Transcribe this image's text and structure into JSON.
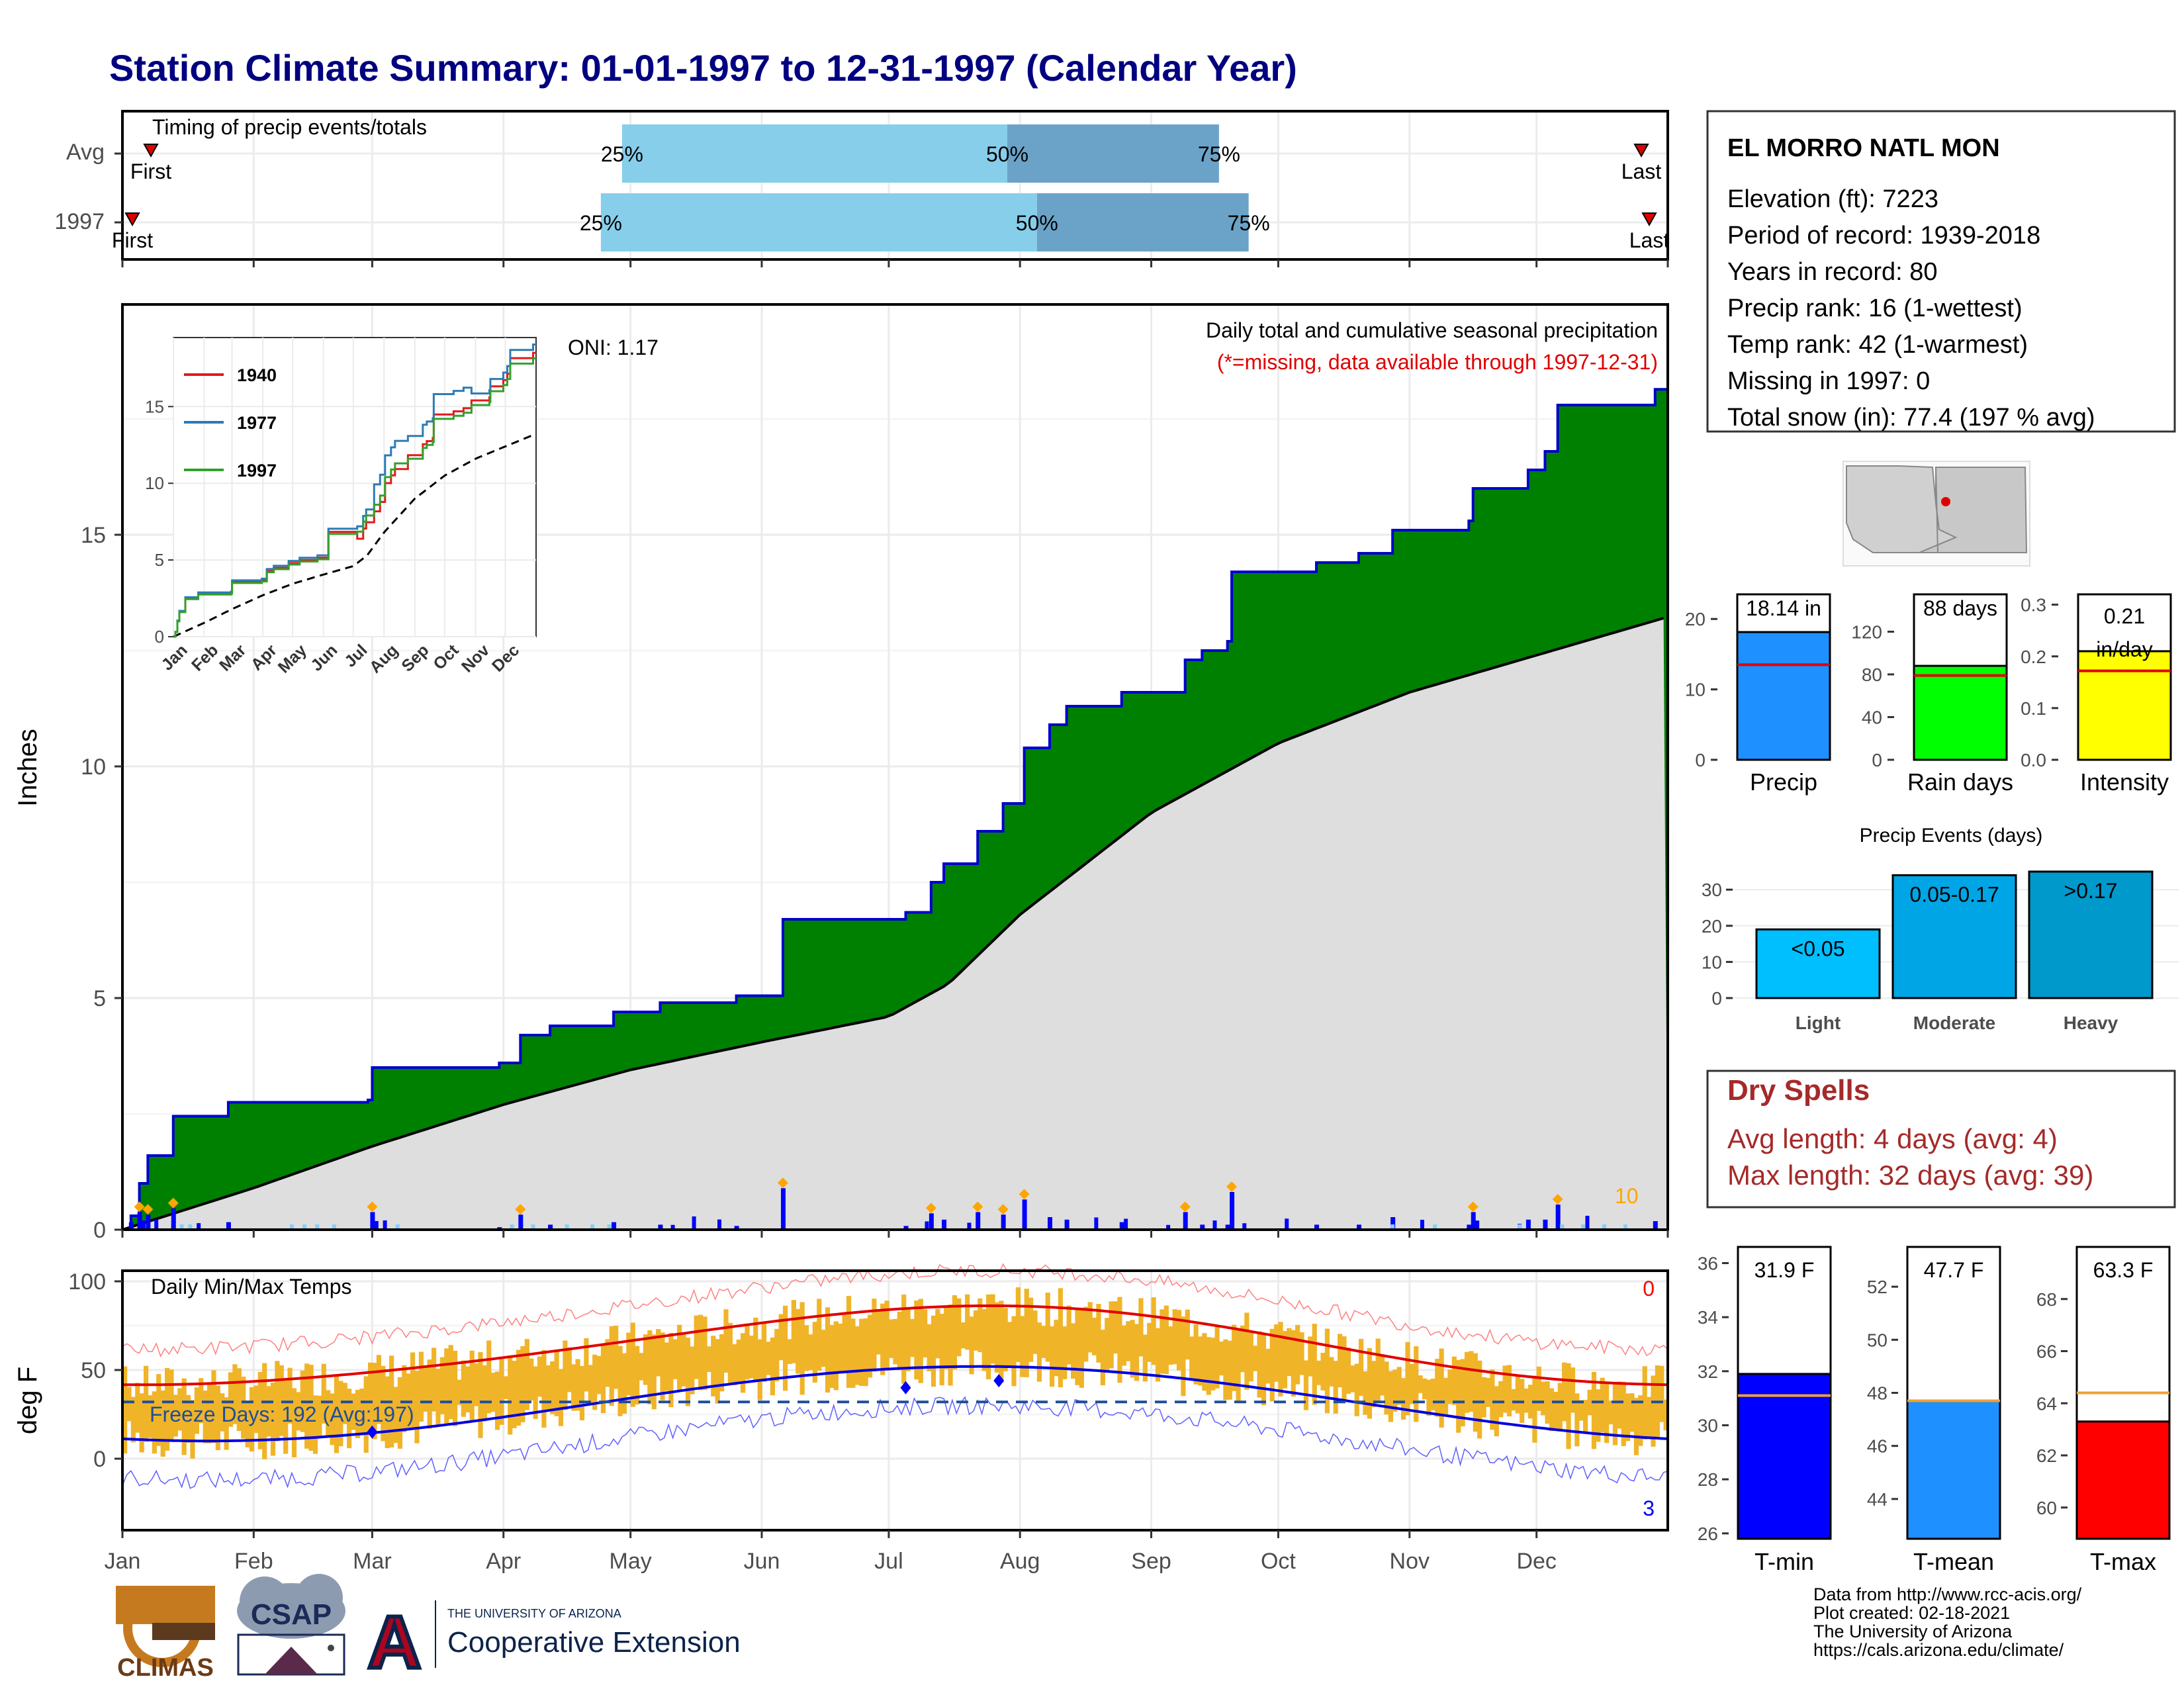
{
  "title": "Station Climate Summary: 01-01-1997 to 12-31-1997 (Calendar Year)",
  "colors": {
    "title": "#000080",
    "precip_fill": "#008000",
    "precip_line": "#0000CD",
    "normal_fill": "#DEDEDE",
    "timing_light": "#87CEEB",
    "timing_dark": "#6BA3C8",
    "event_light": "#00BFFF",
    "event_moderate": "#00A5E5",
    "event_heavy": "#0099CC",
    "tmin": "#0000FF",
    "tmean": "#1E90FF",
    "tmax": "#FF0000",
    "rain_days": "#00FF00",
    "intensity": "#FFFF00",
    "temp_bar": "#F0B429",
    "dry_text": "#A52A2A"
  },
  "timing": {
    "title": "Timing of precip events/totals",
    "rows": [
      {
        "label": "Avg",
        "p25": "25%",
        "p50": "50%",
        "p75": "75%",
        "first": "First",
        "last": "Last",
        "q25_day": 118,
        "q50_day": 209,
        "q75_day": 259
      },
      {
        "label": "1997",
        "p25": "25%",
        "p50": "50%",
        "p75": "75%",
        "first": "First",
        "last": "Last",
        "q25_day": 113,
        "q50_day": 216,
        "q75_day": 266
      }
    ]
  },
  "precip_panel": {
    "ylabel": "Inches",
    "oni": "ONI: 1.17",
    "subtitle": "Daily total and cumulative seasonal precipitation",
    "missing_note": "(*=missing, data available through 1997-12-31)",
    "count_label": "10",
    "yticks": [
      "0",
      "5",
      "10",
      "15"
    ]
  },
  "inset": {
    "legend": [
      "1940",
      "1977",
      "1997"
    ],
    "legend_colors": [
      "#E31A1C",
      "#2C7BB6",
      "#33A02C"
    ],
    "yticks": [
      "0",
      "5",
      "10",
      "15"
    ],
    "months": [
      "Jan",
      "Feb",
      "Mar",
      "Apr",
      "May",
      "Jun",
      "Jul",
      "Aug",
      "Sep",
      "Oct",
      "Nov",
      "Dec"
    ]
  },
  "temp_panel": {
    "ylabel": "deg F",
    "title": "Daily Min/Max Temps",
    "freeze": "Freeze Days: 192 (Avg:197)",
    "top_count": "0",
    "bottom_count": "3",
    "yticks": [
      "0",
      "50",
      "100"
    ]
  },
  "months": [
    "Jan",
    "Feb",
    "Mar",
    "Apr",
    "May",
    "Jun",
    "Jul",
    "Aug",
    "Sep",
    "Oct",
    "Nov",
    "Dec"
  ],
  "station": {
    "name": "EL MORRO NATL MON",
    "elevation": "Elevation (ft): 7223",
    "period": "Period of record: 1939-2018",
    "years": "Years in record: 80",
    "precip_rank": "Precip rank: 16 (1-wettest)",
    "temp_rank": "Temp rank: 42 (1-warmest)",
    "missing": "Missing in 1997: 0",
    "snow": "Total snow (in): 77.4 (197 % avg)"
  },
  "summary_bars": [
    {
      "label": "Precip",
      "value_text": "18.14 in",
      "value": 18.14,
      "avg": 13.5,
      "yticks": [
        "0",
        "10",
        "20"
      ]
    },
    {
      "label": "Rain days",
      "value_text": "88 days",
      "value": 88,
      "avg": 79,
      "yticks": [
        "0",
        "40",
        "80",
        "120"
      ]
    },
    {
      "label": "Intensity",
      "value_text_1": "0.21",
      "value_text_2": "in/day",
      "value": 0.21,
      "avg": 0.172,
      "yticks": [
        "0.0",
        "0.1",
        "0.2",
        "0.3"
      ]
    }
  ],
  "precip_events": {
    "title": "Precip Events (days)",
    "bars": [
      {
        "label": "Light",
        "range": "<0.05",
        "value": 19
      },
      {
        "label": "Moderate",
        "range": "0.05-0.17",
        "value": 34
      },
      {
        "label": "Heavy",
        "range": ">0.17",
        "value": 35
      }
    ],
    "yticks": [
      "0",
      "10",
      "20",
      "30"
    ]
  },
  "dry_spells": {
    "title": "Dry Spells",
    "avg": "Avg length: 4 days (avg: 4)",
    "max": "Max length: 32 days (avg: 39)"
  },
  "temp_bars": [
    {
      "label": "T-min",
      "value_text": "31.9 F",
      "value": 31.9,
      "avg": 31.1,
      "yticks": [
        "26",
        "28",
        "30",
        "32",
        "34",
        "36"
      ]
    },
    {
      "label": "T-mean",
      "value_text": "47.7 F",
      "value": 47.7,
      "avg": 47.7,
      "yticks": [
        "44",
        "46",
        "48",
        "50",
        "52"
      ]
    },
    {
      "label": "T-max",
      "value_text": "63.3 F",
      "value": 63.3,
      "avg": 64.4,
      "yticks": [
        "60",
        "62",
        "64",
        "66",
        "68"
      ]
    }
  ],
  "logos": {
    "climas": "CLIMAS",
    "csap": "CSAP",
    "ua_small": "THE UNIVERSITY OF ARIZONA",
    "ua_big": "Cooperative Extension",
    "ua_letter": "A"
  },
  "credits": [
    "Data from http://www.rcc-acis.org/",
    "Plot created: 02-18-2021",
    "The University of Arizona",
    "https://cals.arizona.edu/climate/"
  ],
  "chart_data": {
    "type": "area",
    "title": "Station Climate Summary: 01-01-1997 to 12-31-1997 (Calendar Year)",
    "ylabel": "Inches",
    "ylim": [
      0,
      19.5
    ],
    "cumulative_1997": [
      {
        "date": "1997-01-01",
        "in": 0.0
      },
      {
        "date": "1997-01-03",
        "in": 0.3
      },
      {
        "date": "1997-01-05",
        "in": 1.0
      },
      {
        "date": "1997-01-07",
        "in": 1.6
      },
      {
        "date": "1997-01-13",
        "in": 2.45
      },
      {
        "date": "1997-01-25",
        "in": 2.45
      },
      {
        "date": "1997-01-26",
        "in": 2.75
      },
      {
        "date": "1997-02-28",
        "in": 2.8
      },
      {
        "date": "1997-03-01",
        "in": 3.5
      },
      {
        "date": "1997-03-31",
        "in": 3.6
      },
      {
        "date": "1997-04-05",
        "in": 4.2
      },
      {
        "date": "1997-04-12",
        "in": 4.4
      },
      {
        "date": "1997-04-27",
        "in": 4.7
      },
      {
        "date": "1997-05-08",
        "in": 4.9
      },
      {
        "date": "1997-05-26",
        "in": 5.05
      },
      {
        "date": "1997-06-06",
        "in": 6.7
      },
      {
        "date": "1997-07-05",
        "in": 6.85
      },
      {
        "date": "1997-07-11",
        "in": 7.5
      },
      {
        "date": "1997-07-14",
        "in": 7.9
      },
      {
        "date": "1997-07-22",
        "in": 8.6
      },
      {
        "date": "1997-07-28",
        "in": 9.2
      },
      {
        "date": "1997-08-02",
        "in": 10.4
      },
      {
        "date": "1997-08-08",
        "in": 10.9
      },
      {
        "date": "1997-08-12",
        "in": 11.3
      },
      {
        "date": "1997-08-25",
        "in": 11.6
      },
      {
        "date": "1997-09-09",
        "in": 12.3
      },
      {
        "date": "1997-09-13",
        "in": 12.5
      },
      {
        "date": "1997-09-19",
        "in": 12.7
      },
      {
        "date": "1997-09-20",
        "in": 14.2
      },
      {
        "date": "1997-10-05",
        "in": 14.2
      },
      {
        "date": "1997-10-10",
        "in": 14.4
      },
      {
        "date": "1997-10-20",
        "in": 14.6
      },
      {
        "date": "1997-10-28",
        "in": 15.1
      },
      {
        "date": "1997-11-15",
        "in": 15.3
      },
      {
        "date": "1997-11-16",
        "in": 16.0
      },
      {
        "date": "1997-11-29",
        "in": 16.4
      },
      {
        "date": "1997-12-03",
        "in": 16.8
      },
      {
        "date": "1997-12-06",
        "in": 17.8
      },
      {
        "date": "1997-12-26",
        "in": 17.8
      },
      {
        "date": "1997-12-29",
        "in": 18.14
      }
    ],
    "normal_cumulative": [
      {
        "date": "1997-01-01",
        "in": 0.0
      },
      {
        "date": "1997-02-01",
        "in": 0.9
      },
      {
        "date": "1997-03-01",
        "in": 1.8
      },
      {
        "date": "1997-04-01",
        "in": 2.7
      },
      {
        "date": "1997-05-01",
        "in": 3.45
      },
      {
        "date": "1997-06-01",
        "in": 4.05
      },
      {
        "date": "1997-07-01",
        "in": 4.6
      },
      {
        "date": "1997-07-15",
        "in": 5.3
      },
      {
        "date": "1997-08-01",
        "in": 6.8
      },
      {
        "date": "1997-09-01",
        "in": 9.0
      },
      {
        "date": "1997-10-01",
        "in": 10.5
      },
      {
        "date": "1997-11-01",
        "in": 11.6
      },
      {
        "date": "1997-12-01",
        "in": 12.4
      },
      {
        "date": "1997-12-31",
        "in": 13.2
      }
    ],
    "temperature_normals_degF": {
      "normal_max": [
        {
          "month": "Jan",
          "v": 41
        },
        {
          "month": "Apr",
          "v": 58
        },
        {
          "month": "Jul",
          "v": 85
        },
        {
          "month": "Oct",
          "v": 67
        },
        {
          "month": "Dec",
          "v": 43
        }
      ],
      "normal_min": [
        {
          "month": "Jan",
          "v": 10
        },
        {
          "month": "Apr",
          "v": 25
        },
        {
          "month": "Jul",
          "v": 52
        },
        {
          "month": "Oct",
          "v": 32
        },
        {
          "month": "Dec",
          "v": 12
        }
      ]
    }
  }
}
